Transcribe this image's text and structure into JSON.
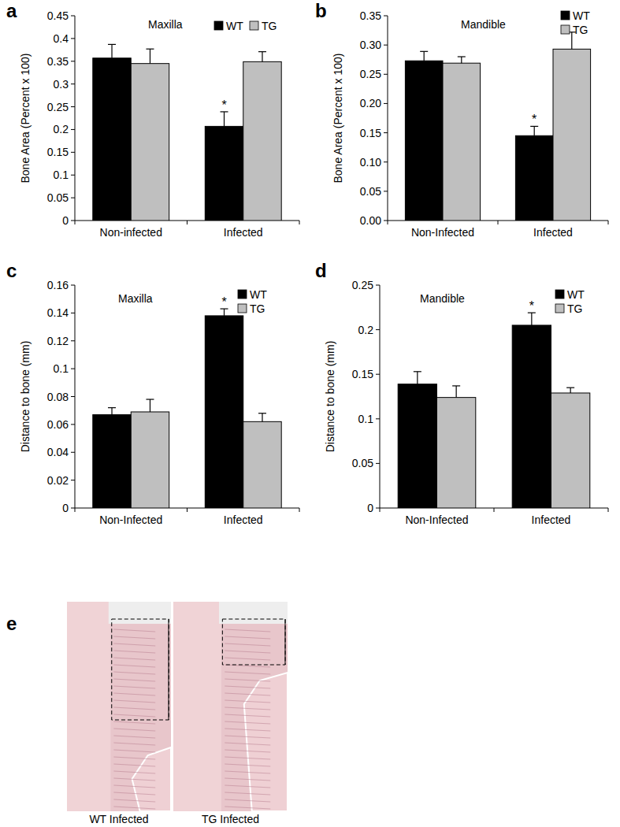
{
  "chart_data": [
    {
      "type": "bar",
      "panel_label": "a",
      "title": "Maxilla",
      "y_label": "Bone Area (Percent x 100)",
      "categories": [
        "Non-infected",
        "Infected"
      ],
      "series": [
        {
          "name": "WT",
          "color": "#000000",
          "values": [
            0.357,
            0.207
          ],
          "errors": [
            0.03,
            0.032
          ]
        },
        {
          "name": "TG",
          "color": "#bfbfbf",
          "values": [
            0.345,
            0.349
          ],
          "errors": [
            0.032,
            0.022
          ]
        }
      ],
      "ylim": [
        0,
        0.45
      ],
      "yticks": [
        0,
        0.05,
        0.1,
        0.15,
        0.2,
        0.25,
        0.3,
        0.35,
        0.4,
        0.45
      ],
      "legend": "top right",
      "annotations": [
        {
          "text": "*",
          "series": "WT",
          "category": "Infected"
        }
      ]
    },
    {
      "type": "bar",
      "panel_label": "b",
      "title": "Mandible",
      "y_label": "Bone Area (Percent x 100)",
      "categories": [
        "Non-Infected",
        "Infected"
      ],
      "series": [
        {
          "name": "WT",
          "color": "#000000",
          "values": [
            0.273,
            0.145
          ],
          "errors": [
            0.016,
            0.016
          ]
        },
        {
          "name": "TG",
          "color": "#bfbfbf",
          "values": [
            0.269,
            0.293
          ],
          "errors": [
            0.011,
            0.029
          ]
        }
      ],
      "ylim": [
        0,
        0.35
      ],
      "yticks": [
        {
          "value": 0,
          "label": "0.00"
        },
        {
          "value": 0.05,
          "label": "0.05"
        },
        {
          "value": 0.1,
          "label": "0.10"
        },
        {
          "value": 0.15,
          "label": "0.15"
        },
        {
          "value": 0.2,
          "label": "0.20"
        },
        {
          "value": 0.25,
          "label": "0.25"
        },
        {
          "value": 0.3,
          "label": "0.30"
        },
        {
          "value": 0.35,
          "label": "0.35"
        }
      ],
      "legend": "top right",
      "annotations": [
        {
          "text": "*",
          "series": "WT",
          "category": "Infected"
        }
      ]
    },
    {
      "type": "bar",
      "panel_label": "c",
      "title": "Maxilla",
      "y_label": "Distance to bone (mm)",
      "categories": [
        "Non-Infected",
        "Infected"
      ],
      "series": [
        {
          "name": "WT",
          "color": "#000000",
          "values": [
            0.067,
            0.138
          ],
          "errors": [
            0.005,
            0.005
          ]
        },
        {
          "name": "TG",
          "color": "#bfbfbf",
          "values": [
            0.069,
            0.062
          ],
          "errors": [
            0.009,
            0.006
          ]
        }
      ],
      "ylim": [
        0,
        0.16
      ],
      "yticks": [
        0,
        0.02,
        0.04,
        0.06,
        0.08,
        0.1,
        0.12,
        0.14,
        0.16
      ],
      "legend": "top right",
      "annotations": [
        {
          "text": "*",
          "series": "WT",
          "category": "Infected"
        }
      ]
    },
    {
      "type": "bar",
      "panel_label": "d",
      "title": "Mandible",
      "y_label": "Distance to bone  (mm)",
      "categories": [
        "Non-Infected",
        "Infected"
      ],
      "series": [
        {
          "name": "WT",
          "color": "#000000",
          "values": [
            0.139,
            0.205
          ],
          "errors": [
            0.014,
            0.014
          ]
        },
        {
          "name": "TG",
          "color": "#bfbfbf",
          "values": [
            0.124,
            0.129
          ],
          "errors": [
            0.013,
            0.006
          ]
        }
      ],
      "ylim": [
        0,
        0.25
      ],
      "yticks": [
        0,
        0.05,
        0.1,
        0.15,
        0.2,
        0.25
      ],
      "legend": "top right",
      "annotations": [
        {
          "text": "*",
          "series": "WT",
          "category": "Infected"
        }
      ]
    }
  ],
  "image_panel": {
    "panel_label": "e",
    "captions": [
      "WT Infected",
      "TG Infected"
    ]
  }
}
